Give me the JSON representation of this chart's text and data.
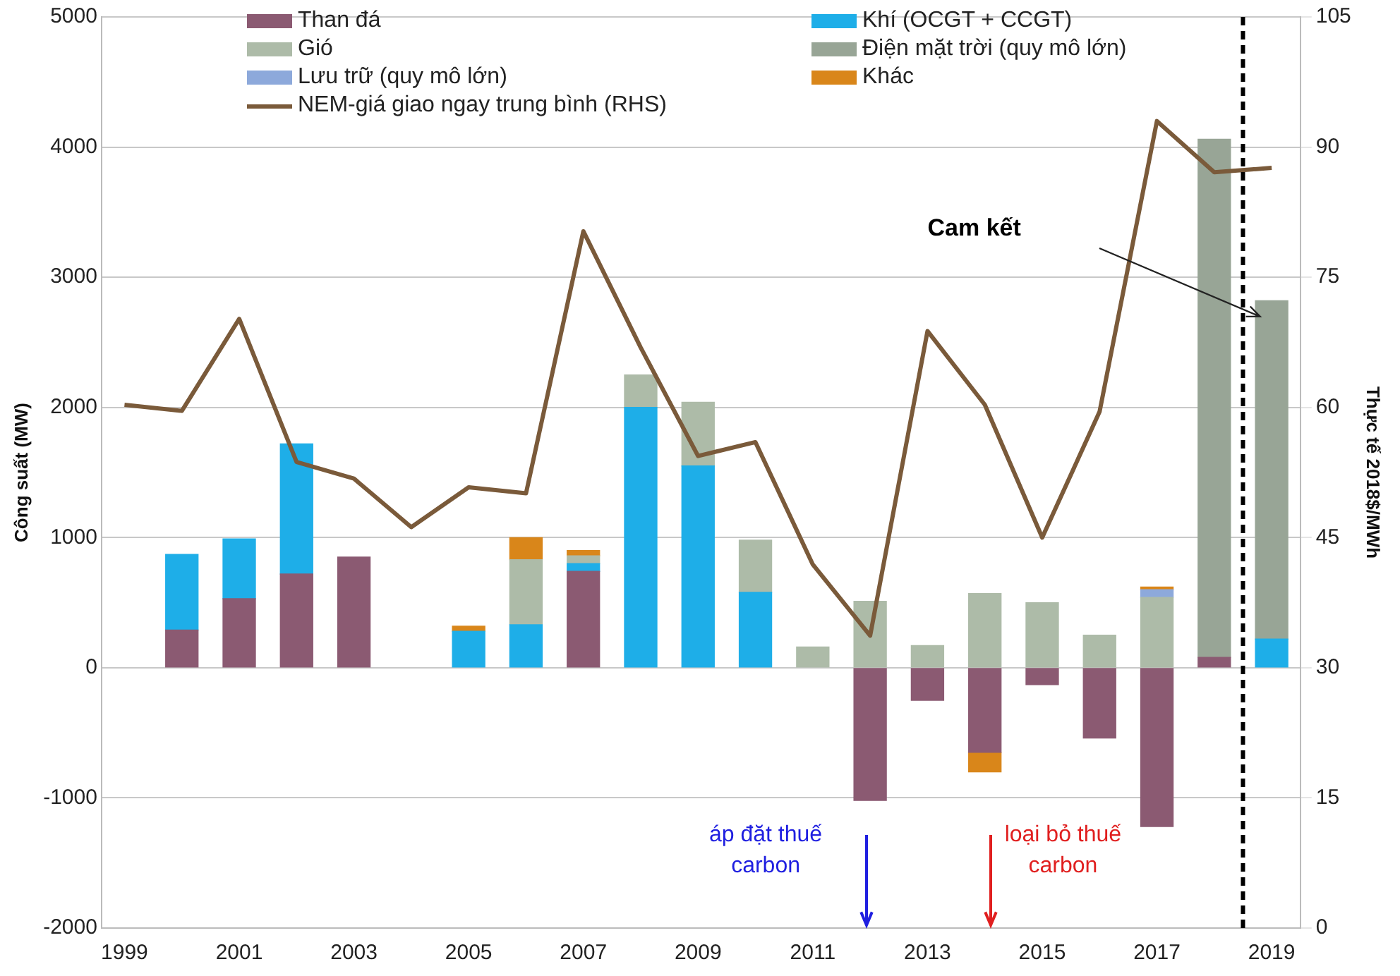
{
  "chart_data": {
    "type": "bar",
    "stacked": true,
    "ylabel": "Công suất (MW)",
    "y2label": "Thực tế 2018$/MWh",
    "x": [
      1999,
      2000,
      2001,
      2002,
      2003,
      2004,
      2005,
      2006,
      2007,
      2008,
      2009,
      2010,
      2011,
      2012,
      2013,
      2014,
      2015,
      2016,
      2017,
      2018,
      2019
    ],
    "xlim": [
      1998.6,
      2019.5
    ],
    "xticks": [
      1999,
      2001,
      2003,
      2005,
      2007,
      2009,
      2011,
      2013,
      2015,
      2017,
      2019
    ],
    "ylim": [
      -2000,
      5000
    ],
    "yticks": [
      -2000,
      -1000,
      0,
      1000,
      2000,
      3000,
      4000,
      5000
    ],
    "y2lim": [
      0,
      105
    ],
    "y2ticks": [
      0,
      15,
      30,
      45,
      60,
      75,
      90,
      105
    ],
    "grid": "y",
    "legend": "top",
    "series": [
      {
        "name": "Than đá",
        "color": "#8b5a72",
        "values": [
          null,
          290,
          530,
          720,
          850,
          null,
          null,
          null,
          740,
          null,
          null,
          null,
          null,
          -1020,
          -250,
          -650,
          -130,
          -540,
          -1220,
          80,
          null
        ]
      },
      {
        "name": "Khí (OCGT + CCGT)",
        "color": "#1eaee8",
        "values": [
          null,
          580,
          460,
          1000,
          null,
          null,
          280,
          330,
          60,
          2000,
          1550,
          580,
          null,
          null,
          null,
          null,
          null,
          null,
          null,
          null,
          220
        ]
      },
      {
        "name": "Gió",
        "color": "#adbba8",
        "values": [
          null,
          null,
          null,
          null,
          null,
          null,
          null,
          500,
          60,
          250,
          490,
          400,
          160,
          510,
          170,
          570,
          500,
          250,
          540,
          null,
          null
        ]
      },
      {
        "name": "Điện mặt trời (quy mô lớn)",
        "color": "#98a596",
        "values": [
          null,
          null,
          null,
          null,
          null,
          null,
          null,
          null,
          null,
          null,
          null,
          null,
          null,
          null,
          null,
          null,
          null,
          null,
          null,
          3980,
          2600
        ]
      },
      {
        "name": "Lưu trữ (quy mô lớn)",
        "color": "#8da9db",
        "values": [
          null,
          null,
          null,
          null,
          null,
          null,
          null,
          null,
          null,
          null,
          null,
          null,
          null,
          null,
          null,
          null,
          null,
          null,
          60,
          null,
          null
        ]
      },
      {
        "name": "Khác",
        "color": "#d9861a",
        "values": [
          null,
          null,
          null,
          null,
          null,
          null,
          40,
          170,
          40,
          null,
          null,
          null,
          null,
          null,
          null,
          -150,
          null,
          null,
          20,
          null,
          null
        ]
      },
      {
        "name": "NEM-giá giao ngay trung bình (RHS)",
        "type": "line",
        "axis": "y2",
        "color": "#7a5a3a",
        "marker": "none",
        "values": [
          60.3,
          59.6,
          70.2,
          53.7,
          51.8,
          46.2,
          50.8,
          50.1,
          80.3,
          66.9,
          54.4,
          56,
          41.9,
          33.7,
          68.8,
          60.3,
          45,
          59.5,
          93,
          87.1,
          87.6
        ]
      }
    ],
    "ref_lines": [
      {
        "axis": "x",
        "value": 2018.5,
        "color": "#000000",
        "line_style": "dashed"
      }
    ],
    "annotations": [
      "Cam kết",
      "áp đặt thuế carbon",
      "loại bỏ thuế carbon"
    ]
  }
}
